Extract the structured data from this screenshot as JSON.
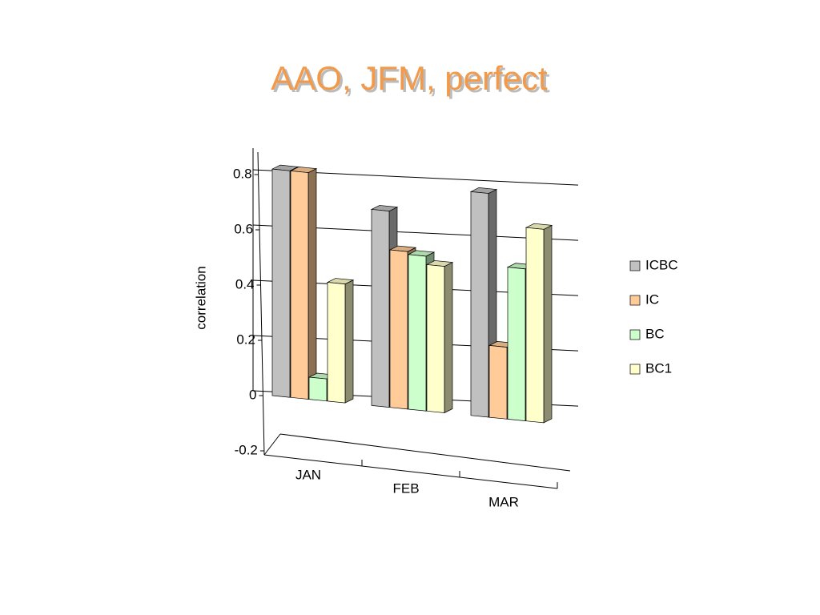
{
  "chart_data": {
    "type": "bar3d",
    "title": "AAO, JFM, perfect",
    "y_label": "correlation",
    "categories": [
      "JAN",
      "FEB",
      "MAR"
    ],
    "series": [
      {
        "name": "ICBC",
        "color": "#C0C0C0",
        "values": [
          0.82,
          0.71,
          0.81
        ]
      },
      {
        "name": "IC",
        "color": "#FFCC99",
        "values": [
          0.82,
          0.57,
          0.26
        ]
      },
      {
        "name": "BC",
        "color": "#CCFFCC",
        "values": [
          0.08,
          0.56,
          0.55
        ]
      },
      {
        "name": "BC1",
        "color": "#FFFFCC",
        "values": [
          0.43,
          0.53,
          0.7
        ]
      }
    ],
    "ylim": [
      -0.2,
      0.9
    ],
    "yticks": [
      -0.2,
      0,
      0.2,
      0.4,
      0.6,
      0.8
    ],
    "grid": true,
    "legend": "right"
  }
}
